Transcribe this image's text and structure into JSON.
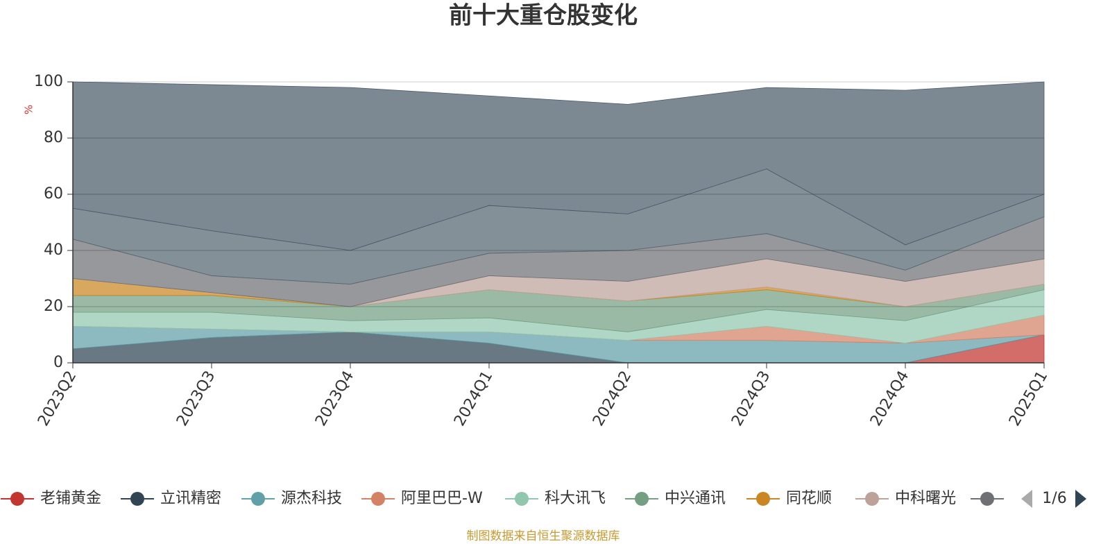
{
  "chart_data": {
    "type": "stacked_area",
    "title": "前十大重仓股变化",
    "y_label": "%",
    "categories": [
      "2023Q2",
      "2023Q3",
      "2023Q4",
      "2024Q1",
      "2024Q2",
      "2024Q3",
      "2024Q4",
      "2025Q1"
    ],
    "ylim": [
      0,
      100
    ],
    "yticks": [
      0,
      20,
      40,
      60,
      80,
      100
    ],
    "grid": true,
    "series": [
      {
        "name": "老铺黄金",
        "color": "#c23531",
        "values": [
          0,
          0,
          0,
          0,
          0,
          0,
          0,
          10
        ]
      },
      {
        "name": "立讯精密",
        "color": "#2f4554",
        "values": [
          5,
          9,
          11,
          7,
          0,
          0,
          0,
          0
        ]
      },
      {
        "name": "源杰科技",
        "color": "#61a0a8",
        "values": [
          8,
          3,
          0,
          4,
          8,
          8,
          7,
          0
        ]
      },
      {
        "name": "阿里巴巴-W",
        "color": "#d48265",
        "values": [
          0,
          0,
          0,
          0,
          0,
          5,
          0,
          7
        ]
      },
      {
        "name": "科大讯飞",
        "color": "#91c7ae",
        "values": [
          5,
          6,
          4,
          5,
          3,
          6,
          8,
          9
        ]
      },
      {
        "name": "中兴通讯",
        "color": "#749f83",
        "values": [
          6,
          6,
          5,
          10,
          11,
          7,
          5,
          2
        ]
      },
      {
        "name": "同花顺",
        "color": "#ca8622",
        "values": [
          6,
          1,
          0,
          0,
          0,
          1,
          0,
          0
        ]
      },
      {
        "name": "中科曙光",
        "color": "#bda29a",
        "values": [
          0,
          0,
          0,
          5,
          7,
          10,
          9,
          9
        ]
      },
      {
        "color": "#6e7074",
        "values": [
          14,
          6,
          8,
          8,
          11,
          9,
          4,
          15
        ]
      },
      {
        "color": "#546570",
        "values": [
          11,
          16,
          12,
          17,
          13,
          23,
          9,
          8
        ]
      },
      {
        "color": "#4a5b6a",
        "values": [
          45,
          52,
          58,
          39,
          39,
          29,
          55,
          40
        ]
      }
    ],
    "legend_page": "1/6",
    "source": "制图数据来自恒生聚源数据库"
  }
}
